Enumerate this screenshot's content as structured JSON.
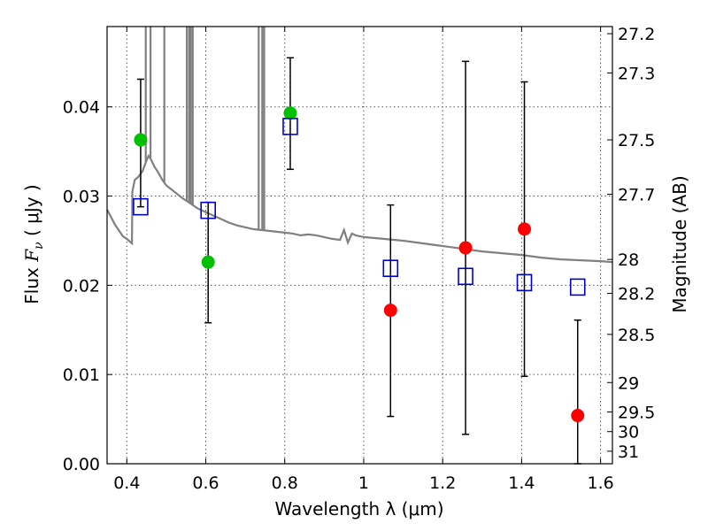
{
  "chart_data": {
    "type": "scatter",
    "xlabel": "Wavelength  λ (μm)",
    "ylabel": "Flux  F_ν  ( μJy )",
    "ylabel_parts": {
      "prefix": "Flux ",
      "var": "F",
      "sub": "ν",
      "unit": "  ( μJy )"
    },
    "y2label": "Magnitude (AB)",
    "xlim": [
      0.35,
      1.63
    ],
    "ylim": [
      0.0,
      0.049
    ],
    "grid": true,
    "x_ticks": [
      0.4,
      0.6,
      0.8,
      1.0,
      1.2,
      1.4,
      1.6
    ],
    "x_tick_labels": [
      "0.4",
      "0.6",
      "0.8",
      "1",
      "1.2",
      "1.4",
      "1.6"
    ],
    "y_ticks": [
      0.0,
      0.01,
      0.02,
      0.03,
      0.04
    ],
    "y_tick_labels": [
      "0.00",
      "0.01",
      "0.02",
      "0.03",
      "0.04"
    ],
    "y2_ticks": [
      {
        "label": "27.2",
        "flux": 0.0482
      },
      {
        "label": "27.3",
        "flux": 0.0438
      },
      {
        "label": "27.5",
        "flux": 0.0363
      },
      {
        "label": "27.7",
        "flux": 0.0302
      },
      {
        "label": "28",
        "flux": 0.0229
      },
      {
        "label": "28.2",
        "flux": 0.0191
      },
      {
        "label": "28.5",
        "flux": 0.0145
      },
      {
        "label": "29",
        "flux": 0.0091
      },
      {
        "label": "29.5",
        "flux": 0.0058
      },
      {
        "label": "30",
        "flux": 0.0036
      },
      {
        "label": "31",
        "flux": 0.0014
      }
    ],
    "series": [
      {
        "marker": "circle",
        "color": "#00c000",
        "points": [
          {
            "x": 0.435,
            "y": 0.0363
          },
          {
            "x": 0.606,
            "y": 0.0226
          },
          {
            "x": 0.814,
            "y": 0.0393
          }
        ]
      },
      {
        "marker": "circle",
        "color": "#ff0000",
        "points": [
          {
            "x": 1.068,
            "y": 0.0172
          },
          {
            "x": 1.258,
            "y": 0.0242
          },
          {
            "x": 1.407,
            "y": 0.0263
          },
          {
            "x": 1.542,
            "y": 0.0054
          }
        ]
      },
      {
        "marker": "square-open",
        "color": "#0000cc",
        "points": [
          {
            "x": 0.435,
            "y": 0.0288
          },
          {
            "x": 0.606,
            "y": 0.0284
          },
          {
            "x": 0.814,
            "y": 0.0378
          },
          {
            "x": 1.068,
            "y": 0.0219
          },
          {
            "x": 1.258,
            "y": 0.021
          },
          {
            "x": 1.407,
            "y": 0.0203
          },
          {
            "x": 1.542,
            "y": 0.0198
          }
        ]
      }
    ],
    "error_bars": [
      {
        "x": 0.435,
        "low": 0.0288,
        "high": 0.0431
      },
      {
        "x": 0.606,
        "low": 0.0158,
        "high": 0.0293
      },
      {
        "x": 0.814,
        "low": 0.033,
        "high": 0.0455
      },
      {
        "x": 1.068,
        "low": 0.0053,
        "high": 0.029
      },
      {
        "x": 1.258,
        "low": 0.0033,
        "high": 0.0451
      },
      {
        "x": 1.407,
        "low": 0.0098,
        "high": 0.0428
      },
      {
        "x": 1.542,
        "low": 0.0,
        "high": 0.0161
      }
    ],
    "model_spectrum": {
      "color": "#808080",
      "x": [
        0.35,
        0.37,
        0.39,
        0.4,
        0.41,
        0.413,
        0.414,
        0.42,
        0.43,
        0.44,
        0.45,
        0.455,
        0.46,
        0.47,
        0.48,
        0.49,
        0.5,
        0.52,
        0.54,
        0.56,
        0.58,
        0.6,
        0.62,
        0.64,
        0.66,
        0.68,
        0.7,
        0.72,
        0.74,
        0.76,
        0.78,
        0.8,
        0.82,
        0.84,
        0.86,
        0.88,
        0.9,
        0.92,
        0.94,
        0.95,
        0.96,
        0.97,
        0.98,
        1.0,
        1.05,
        1.1,
        1.15,
        1.2,
        1.25,
        1.3,
        1.35,
        1.4,
        1.45,
        1.5,
        1.55,
        1.6,
        1.63
      ],
      "y": [
        0.0285,
        0.0268,
        0.0255,
        0.0252,
        0.0248,
        0.0247,
        0.0305,
        0.0318,
        0.0322,
        0.0328,
        0.034,
        0.0345,
        0.0342,
        0.0333,
        0.0326,
        0.0318,
        0.0312,
        0.0305,
        0.0298,
        0.0292,
        0.0286,
        0.0282,
        0.0278,
        0.0274,
        0.027,
        0.0267,
        0.0265,
        0.0263,
        0.0262,
        0.0261,
        0.026,
        0.0259,
        0.0258,
        0.0256,
        0.0257,
        0.0256,
        0.0254,
        0.0252,
        0.0251,
        0.0262,
        0.0248,
        0.0258,
        0.0256,
        0.0254,
        0.0252,
        0.025,
        0.0247,
        0.0244,
        0.0241,
        0.0238,
        0.0236,
        0.0234,
        0.0231,
        0.0229,
        0.0228,
        0.0227,
        0.0226
      ],
      "spikes": [
        {
          "x": 0.448,
          "top": 0.049
        },
        {
          "x": 0.46,
          "top": 0.049
        },
        {
          "x": 0.495,
          "top": 0.049
        },
        {
          "x": 0.552,
          "top": 0.049
        },
        {
          "x": 0.558,
          "top": 0.049
        },
        {
          "x": 0.562,
          "top": 0.049
        },
        {
          "x": 0.567,
          "top": 0.049
        },
        {
          "x": 0.734,
          "top": 0.049
        },
        {
          "x": 0.743,
          "top": 0.049
        },
        {
          "x": 0.748,
          "top": 0.049
        }
      ]
    }
  }
}
